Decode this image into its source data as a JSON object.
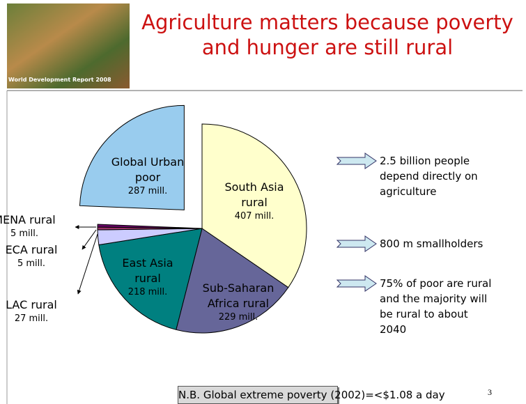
{
  "header": {
    "logo_text": "World Development Report 2008"
  },
  "chart_data": {
    "type": "pie",
    "title": "Agriculture matters because poverty and hunger are still rural",
    "categories": [
      "South Asia rural",
      "Sub-Saharan Africa rural",
      "East Asia rural",
      "LAC rural",
      "ECA rural",
      "MENA rural",
      "Global Urban poor"
    ],
    "values": [
      407,
      229,
      218,
      27,
      5,
      5,
      287
    ],
    "value_labels": [
      "407 mill.",
      "229 mill.",
      "218 mill.",
      "27 mill.",
      "5 mill.",
      "5 mill.",
      "287 mill."
    ],
    "colors": [
      "#ffffcc",
      "#666699",
      "#008080",
      "#ccccff",
      "#993366",
      "#660066",
      "#99ccee"
    ],
    "explode": [
      false,
      false,
      false,
      false,
      false,
      false,
      true
    ]
  },
  "bullets": [
    "2.5 billion people depend directly on agriculture",
    "800 m smallholders",
    "75% of poor are rural and the majority will be rural to about 2040"
  ],
  "footnote": "N.B.  Global extreme poverty (2002)=<$1.08 a day",
  "slide_number": 3
}
